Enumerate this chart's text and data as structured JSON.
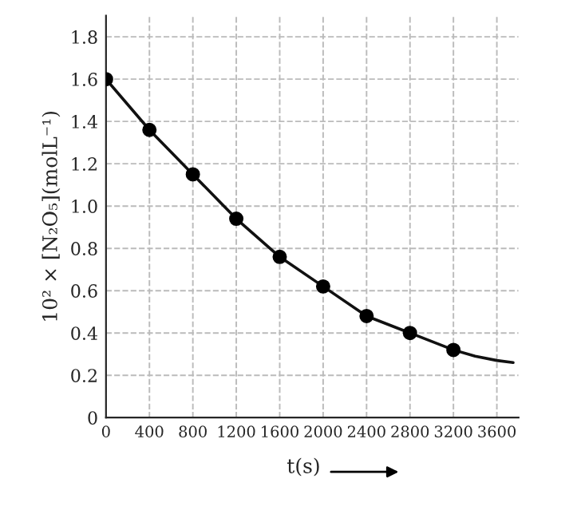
{
  "chart_data": {
    "type": "line",
    "xlabel": "t(s)",
    "ylabel": "10² × [N₂O₅](molL⁻¹)",
    "xlim": [
      0,
      3800
    ],
    "ylim": [
      0,
      1.9
    ],
    "xticks": [
      0,
      400,
      800,
      1200,
      1600,
      2000,
      2400,
      2800,
      3200,
      3600
    ],
    "yticks": [
      0,
      {
        "value": 0.2,
        "label": "0.2"
      },
      {
        "value": 0.4,
        "label": "0.4"
      },
      {
        "value": 0.6,
        "label": "0.6"
      },
      {
        "value": 0.8,
        "label": "0.8"
      },
      {
        "value": 1.0,
        "label": "1.0"
      },
      {
        "value": 1.2,
        "label": "1.2"
      },
      {
        "value": 1.4,
        "label": "1.4"
      },
      {
        "value": 1.6,
        "label": "1.6"
      },
      {
        "value": 1.8,
        "label": "1.8"
      }
    ],
    "grid": true,
    "line_style": "solid",
    "series": [
      {
        "type": "line",
        "color": "#111111",
        "marker": "none",
        "x": [
          0,
          400,
          800,
          1200,
          1600,
          2000,
          2400,
          2800,
          3200,
          3400,
          3600,
          3750
        ],
        "values": [
          1.6,
          1.36,
          1.15,
          0.94,
          0.76,
          0.62,
          0.48,
          0.4,
          0.32,
          0.29,
          0.27,
          0.26
        ]
      },
      {
        "type": "scatter",
        "color": "#000000",
        "marker": "circle",
        "x": [
          0,
          400,
          800,
          1200,
          1600,
          2000,
          2400,
          2800,
          3200
        ],
        "values": [
          1.6,
          1.36,
          1.15,
          0.94,
          0.76,
          0.62,
          0.48,
          0.4,
          0.32
        ]
      }
    ]
  }
}
